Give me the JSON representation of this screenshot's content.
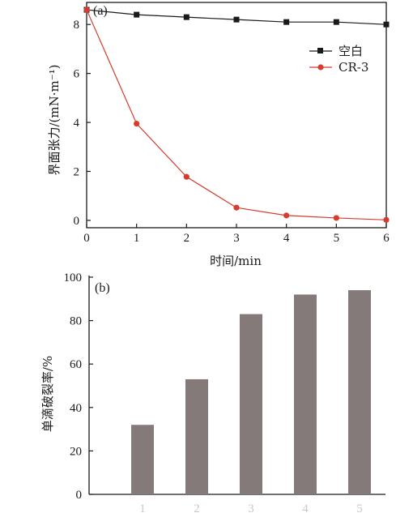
{
  "chart_data": [
    {
      "panel": "(a)",
      "type": "line",
      "xlabel": "时间/min",
      "ylabel": "界面张力/(mN·m⁻¹)",
      "x": [
        0,
        1,
        2,
        3,
        4,
        5,
        6
      ],
      "xticks": [
        "0",
        "1",
        "2",
        "3",
        "4",
        "5",
        "6"
      ],
      "yticks": [
        "0",
        "2",
        "4",
        "6",
        "8"
      ],
      "xlim": [
        0,
        6
      ],
      "ylim": [
        -0.3,
        8.9
      ],
      "legend_position": "top-right",
      "series": [
        {
          "name": "空白",
          "color": "#1a1a1a",
          "marker": "square",
          "values": [
            8.6,
            8.4,
            8.3,
            8.2,
            8.1,
            8.1,
            8.0
          ]
        },
        {
          "name": "CR-3",
          "color": "#d63b2f",
          "marker": "circle",
          "values": [
            8.6,
            3.95,
            1.78,
            0.52,
            0.2,
            0.1,
            0.02
          ]
        }
      ]
    },
    {
      "panel": "(b)",
      "type": "bar",
      "xlabel": "",
      "ylabel": "单滴破裂率/%",
      "categories": [
        "1",
        "2",
        "3",
        "4",
        "5"
      ],
      "values": [
        32,
        53,
        83,
        92,
        94
      ],
      "yticks": [
        "0",
        "20",
        "40",
        "60",
        "80",
        "100"
      ],
      "ylim": [
        0,
        100
      ],
      "bar_color": "#857a7a"
    }
  ]
}
